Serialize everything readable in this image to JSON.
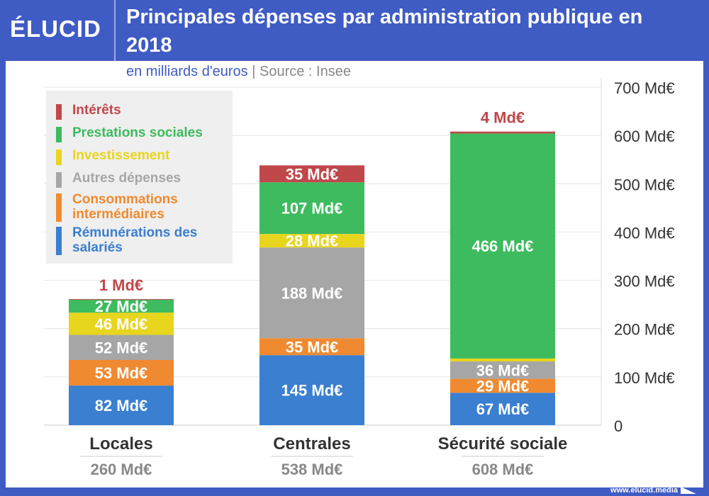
{
  "header": {
    "logo": "ÉLUCID",
    "title": "Principales dépenses par administration publique en 2018",
    "unit": "en milliards d'euros",
    "separator": "|",
    "source": "Source : Insee"
  },
  "footer": {
    "url": "www.elucid.media"
  },
  "chart_data": {
    "type": "stacked-bar",
    "title": "Principales dépenses par administration publique en 2018",
    "ylabel": "en milliards d'euros",
    "ylim": [
      0,
      700
    ],
    "yticks": [
      0,
      100,
      200,
      300,
      400,
      500,
      600,
      700
    ],
    "ytick_labels": [
      "0",
      "100 Md€",
      "200 Md€",
      "300 Md€",
      "400 Md€",
      "500 Md€",
      "600 Md€",
      "700 Md€"
    ],
    "grid": true,
    "legend_position": "top-left",
    "categories": [
      "Locales",
      "Centrales",
      "Sécurité sociale"
    ],
    "totals": [
      "260 Md€",
      "538 Md€",
      "608 Md€"
    ],
    "series": [
      {
        "name": "Rémunérations des salariés",
        "color": "#3a7fd0",
        "values": [
          82,
          145,
          67
        ]
      },
      {
        "name": "Consommations intermédiaires",
        "color": "#f08a30",
        "values": [
          53,
          35,
          29
        ]
      },
      {
        "name": "Autres dépenses",
        "color": "#a6a6a6",
        "values": [
          52,
          188,
          36
        ]
      },
      {
        "name": "Investissement",
        "color": "#e8d51e",
        "values": [
          46,
          28,
          6
        ]
      },
      {
        "name": "Prestations sociales",
        "color": "#3dbb5e",
        "values": [
          27,
          107,
          466
        ]
      },
      {
        "name": "Intérêts",
        "color": "#c0474a",
        "values": [
          1,
          35,
          4
        ]
      }
    ],
    "value_suffix": " Md€"
  },
  "legend": [
    {
      "label": "Intérêts",
      "color": "#c0474a"
    },
    {
      "label": "Prestations sociales",
      "color": "#3dbb5e"
    },
    {
      "label": "Investissement",
      "color": "#e8d51e"
    },
    {
      "label": "Autres dépenses",
      "color": "#a6a6a6"
    },
    {
      "label": "Consommations intermédiaires",
      "color": "#f08a30"
    },
    {
      "label": "Rémunérations des salariés",
      "color": "#3a7fd0"
    }
  ]
}
